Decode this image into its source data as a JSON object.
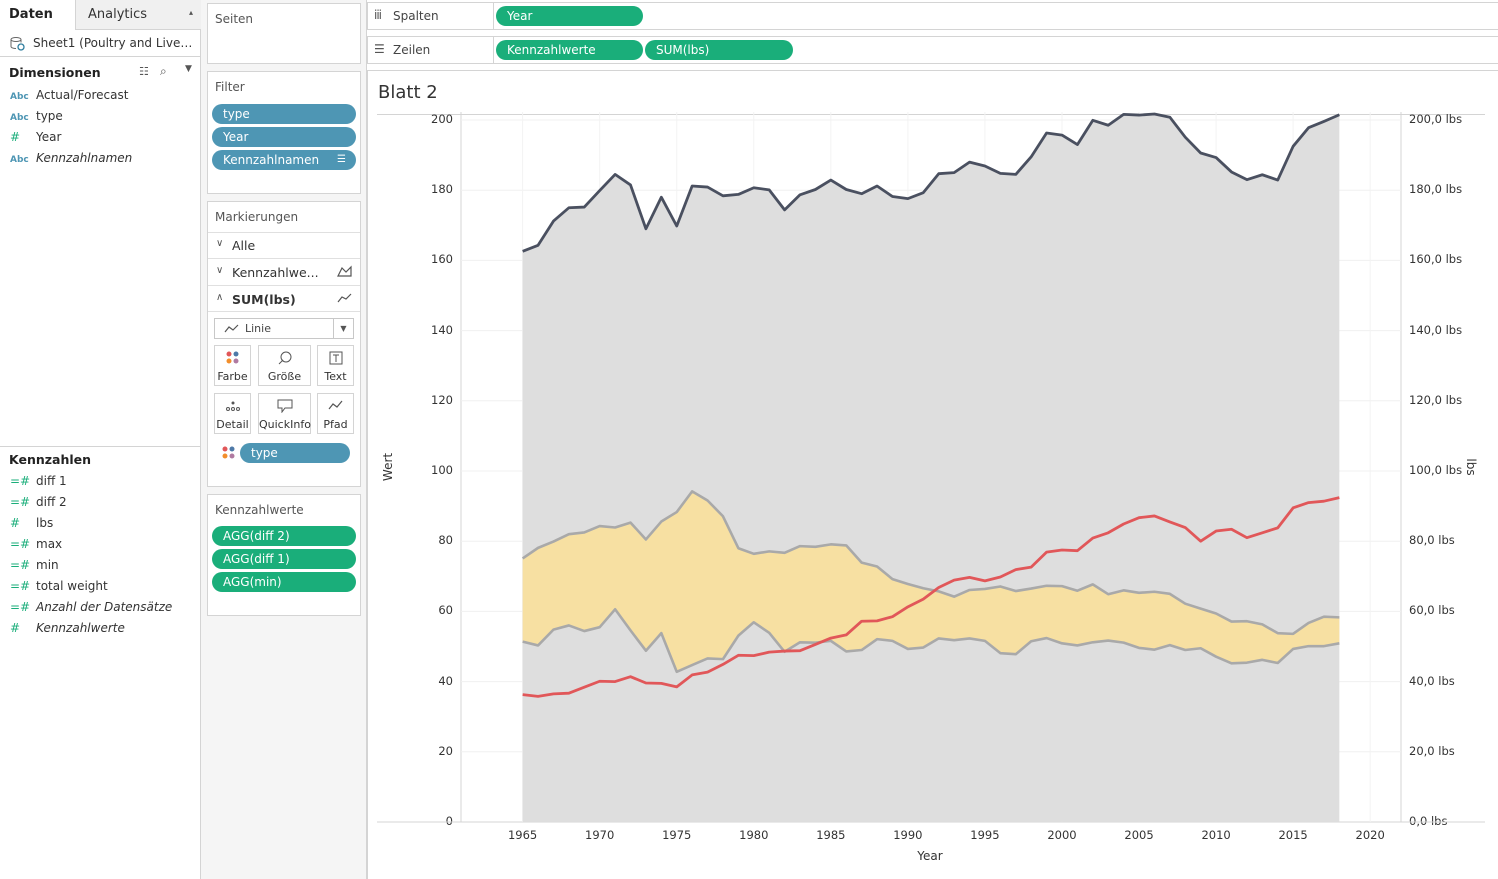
{
  "tabs": {
    "data": "Daten",
    "analytics": "Analytics"
  },
  "datasource": "Sheet1 (Poultry and Live…",
  "dimensions": {
    "title": "Dimensionen",
    "items": [
      {
        "type": "Abc",
        "label": "Actual/Forecast",
        "italic": false
      },
      {
        "type": "Abc",
        "label": "type",
        "italic": false
      },
      {
        "type": "#",
        "label": "Year",
        "italic": false
      },
      {
        "type": "Abc",
        "label": "Kennzahlnamen",
        "italic": true
      }
    ]
  },
  "measures": {
    "title": "Kennzahlen",
    "items": [
      {
        "type": "=#",
        "label": "diff 1",
        "italic": false
      },
      {
        "type": "=#",
        "label": "diff 2",
        "italic": false
      },
      {
        "type": "#",
        "label": "lbs",
        "italic": false
      },
      {
        "type": "=#",
        "label": "max",
        "italic": false
      },
      {
        "type": "=#",
        "label": "min",
        "italic": false
      },
      {
        "type": "=#",
        "label": "total weight",
        "italic": false
      },
      {
        "type": "=#",
        "label": "Anzahl der Datensätze",
        "italic": true
      },
      {
        "type": "#",
        "label": "Kennzahlwerte",
        "italic": true
      }
    ]
  },
  "pages": {
    "title": "Seiten"
  },
  "filters": {
    "title": "Filter",
    "items": [
      "type",
      "Year",
      "Kennzahlnamen"
    ]
  },
  "marks": {
    "title": "Markierungen",
    "all": "Alle",
    "kennzahl": "Kennzahlwe...",
    "sumlbs": "SUM(lbs)",
    "marktype": "Linie",
    "buttons": [
      "Farbe",
      "Größe",
      "Text",
      "Detail",
      "QuickInfo",
      "Pfad"
    ],
    "color_pill": "type"
  },
  "measure_values": {
    "title": "Kennzahlwerte",
    "items": [
      "AGG(diff 2)",
      "AGG(diff 1)",
      "AGG(min)"
    ]
  },
  "shelves": {
    "columns_label": "Spalten",
    "rows_label": "Zeilen",
    "columns": [
      "Year"
    ],
    "rows": [
      "Kennzahlwerte",
      "SUM(lbs)"
    ]
  },
  "sheet_title": "Blatt 2",
  "colors": {
    "teal": "#4e96b4",
    "green": "#1aae7a",
    "area_gray": "#dcdcdc",
    "area_yellow": "#f7e0a2",
    "top_line": "#4a5060",
    "gray_line": "#a9a9a9",
    "red_line": "#e15759"
  },
  "chart_data": {
    "type": "area",
    "xlabel": "Year",
    "ylabel": "Wert",
    "ylabel_right": "lbs",
    "xlim": [
      1961,
      2022
    ],
    "ylim": [
      0,
      200
    ],
    "x_ticks": [
      1965,
      1970,
      1975,
      1980,
      1985,
      1990,
      1995,
      2000,
      2005,
      2010,
      2015,
      2020
    ],
    "y_ticks": [
      "0",
      "20",
      "40",
      "60",
      "80",
      "100",
      "120",
      "140",
      "160",
      "180",
      "200"
    ],
    "y_ticks_right": [
      "0,0 lbs",
      "20,0 lbs",
      "40,0 lbs",
      "60,0 lbs",
      "80,0 lbs",
      "100,0 lbs",
      "120,0 lbs",
      "140,0 lbs",
      "160,0 lbs",
      "180,0 lbs",
      "200,0 lbs"
    ],
    "x": [
      1965,
      1966,
      1967,
      1968,
      1969,
      1970,
      1971,
      1972,
      1973,
      1974,
      1975,
      1976,
      1977,
      1978,
      1979,
      1980,
      1981,
      1982,
      1983,
      1984,
      1985,
      1986,
      1987,
      1988,
      1989,
      1990,
      1991,
      1992,
      1993,
      1994,
      1995,
      1996,
      1997,
      1998,
      1999,
      2000,
      2001,
      2002,
      2003,
      2004,
      2005,
      2006,
      2007,
      2008,
      2009,
      2010,
      2011,
      2012,
      2013,
      2014,
      2015,
      2016,
      2017,
      2018
    ],
    "series": [
      {
        "values": [
          162.6,
          164.3,
          171.2,
          175.0,
          175.2,
          179.9,
          184.5,
          181.5,
          169.0,
          178.0,
          169.8,
          181.2,
          180.9,
          178.4,
          178.8,
          180.7,
          180.1,
          174.4,
          178.7,
          180.2,
          182.9,
          180.2,
          179.0,
          181.2,
          178.2,
          177.6,
          179.3,
          184.7,
          185.0,
          188.0,
          186.9,
          184.8,
          184.5,
          189.5,
          196.3,
          195.7,
          193.0,
          199.9,
          198.5,
          201.6,
          201.4,
          201.7,
          200.8,
          195.1,
          190.6,
          189.3,
          185.2,
          183.0,
          184.4,
          182.9,
          192.5,
          197.8,
          199.6,
          201.5
        ]
      },
      {
        "values": [
          75.1,
          78.1,
          79.9,
          82.0,
          82.5,
          84.3,
          83.9,
          85.3,
          80.5,
          85.6,
          88.3,
          94.2,
          91.6,
          87.1,
          78.0,
          76.4,
          77.1,
          76.7,
          78.6,
          78.4,
          79.1,
          78.8,
          73.9,
          72.8,
          69.2,
          67.8,
          66.6,
          65.7,
          64.2,
          66.1,
          66.4,
          67.1,
          65.8,
          66.5,
          67.3,
          67.2,
          65.9,
          67.7,
          64.9,
          66.0,
          65.3,
          65.6,
          65.0,
          62.2,
          60.8,
          59.4,
          57.1,
          57.2,
          56.3,
          53.8,
          53.6,
          56.7,
          58.5,
          58.3
        ]
      },
      {
        "values": [
          51.4,
          50.3,
          54.8,
          56.0,
          54.4,
          55.5,
          60.6,
          54.6,
          48.8,
          53.8,
          42.8,
          44.7,
          46.6,
          46.4,
          53.1,
          56.9,
          53.9,
          48.5,
          51.2,
          51.1,
          51.6,
          48.6,
          49.0,
          52.1,
          51.6,
          49.3,
          49.7,
          52.3,
          51.8,
          52.3,
          51.6,
          48.1,
          47.8,
          51.5,
          52.4,
          50.9,
          50.3,
          51.2,
          51.7,
          51.1,
          49.6,
          49.1,
          50.4,
          49.0,
          49.5,
          47.1,
          45.2,
          45.4,
          46.2,
          45.3,
          49.3,
          50.1,
          50.1,
          50.9
        ]
      },
      {
        "values": [
          36.3,
          35.8,
          36.5,
          36.7,
          38.4,
          40.1,
          40.0,
          41.4,
          39.6,
          39.5,
          38.5,
          41.9,
          42.7,
          44.9,
          47.5,
          47.4,
          48.4,
          48.7,
          48.8,
          50.6,
          52.4,
          53.3,
          57.2,
          57.3,
          58.5,
          61.3,
          63.5,
          66.8,
          68.9,
          69.7,
          68.7,
          69.8,
          71.9,
          72.6,
          76.9,
          77.5,
          77.3,
          80.9,
          82.4,
          84.9,
          86.7,
          87.2,
          85.5,
          83.9,
          80.0,
          82.9,
          83.4,
          81.0,
          82.4,
          83.8,
          89.5,
          91.0,
          91.4,
          92.4
        ]
      }
    ]
  }
}
